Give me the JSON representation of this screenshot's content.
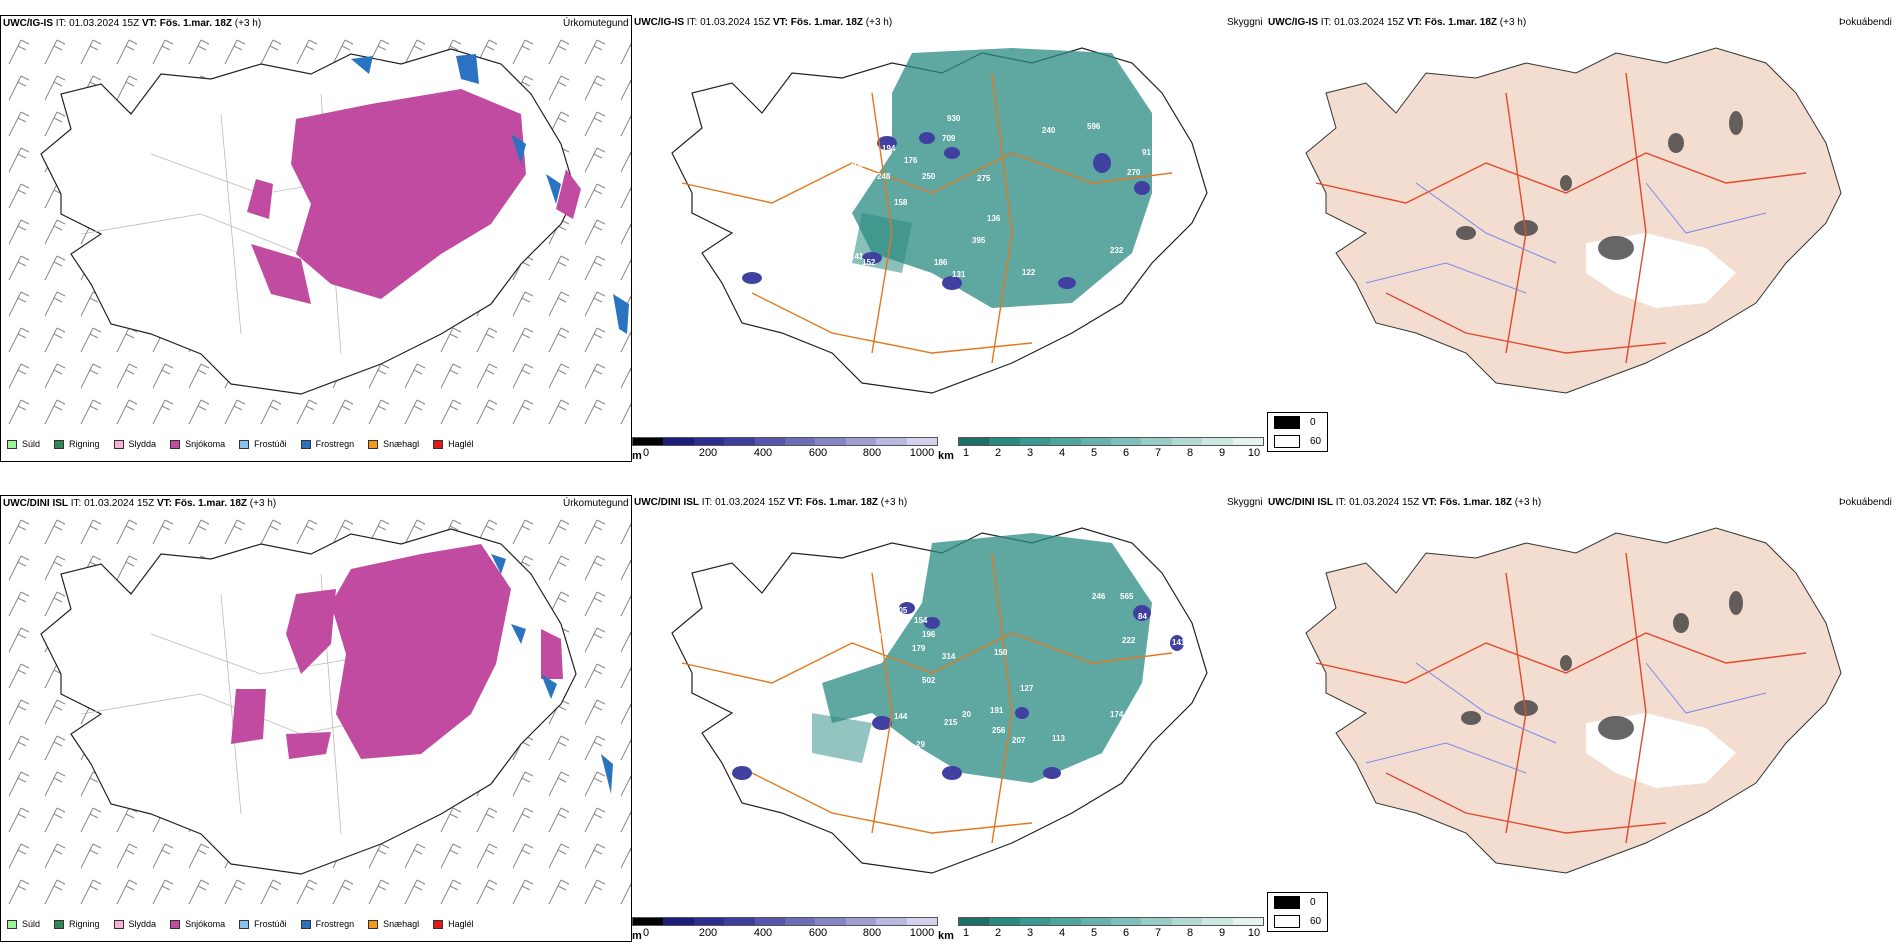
{
  "rows": [
    {
      "model": "UWC/IG-IS",
      "it_label": "IT:",
      "it_value": "01.03.2024 15Z",
      "vt_label": "VT:",
      "vt_value": "Fös. 1.mar. 18Z",
      "lead": "(+3 h)",
      "vis_labels": [
        "930",
        "709",
        "596",
        "240",
        "194",
        "176",
        "308",
        "248",
        "250",
        "275",
        "91",
        "270",
        "142",
        "158",
        "136",
        "395",
        "186",
        "232",
        "152",
        "141",
        "131",
        "122",
        "169"
      ]
    },
    {
      "model": "UWC/DINI ISL",
      "it_label": "IT:",
      "it_value": "01.03.2024 15Z",
      "vt_label": "VT:",
      "vt_value": "Fös. 1.mar. 18Z",
      "lead": "(+3 h)",
      "vis_labels": [
        "305",
        "154",
        "196",
        "309",
        "179",
        "314",
        "246",
        "565",
        "84",
        "222",
        "150",
        "141",
        "100",
        "502",
        "127",
        "191",
        "174",
        "20",
        "215",
        "256",
        "207",
        "113",
        "144",
        "96",
        "144",
        "29"
      ]
    }
  ],
  "panel_titles": {
    "precip": "Úrkomutegund",
    "vis": "Skyggni",
    "fog": "Þokuábendi"
  },
  "precip_legend": [
    {
      "label": "Súld",
      "color": "#98f598"
    },
    {
      "label": "Rigning",
      "color": "#2e8b57"
    },
    {
      "label": "Slydda",
      "color": "#f5b4d2"
    },
    {
      "label": "Snjókoma",
      "color": "#c04ba0"
    },
    {
      "label": "Frostúði",
      "color": "#8cc0ee"
    },
    {
      "label": "Frostregn",
      "color": "#2a73c0"
    },
    {
      "label": "Snæhagl",
      "color": "#f39a1a"
    },
    {
      "label": "Haglél",
      "color": "#e41a1a"
    }
  ],
  "scale_m": {
    "unit": "m",
    "ticks": [
      "0",
      "200",
      "400",
      "600",
      "800",
      "1000"
    ]
  },
  "scale_km": {
    "unit": "km",
    "ticks": [
      "1",
      "2",
      "3",
      "4",
      "5",
      "6",
      "7",
      "8",
      "9",
      "10"
    ]
  },
  "fog_legend": [
    {
      "label": "0",
      "color": "#000000"
    },
    {
      "label": "60",
      "color": "#ffffff"
    }
  ],
  "colors": {
    "snow": "#c04ba0",
    "frz_rain": "#2a73c0",
    "vis_teal": "#2a8a82",
    "vis_purple": "#4040a0",
    "roads": "#e07820",
    "fog_land": "#f2ddd0",
    "fog_roads": "#e04a2a",
    "rivers": "#7a8ae8"
  }
}
